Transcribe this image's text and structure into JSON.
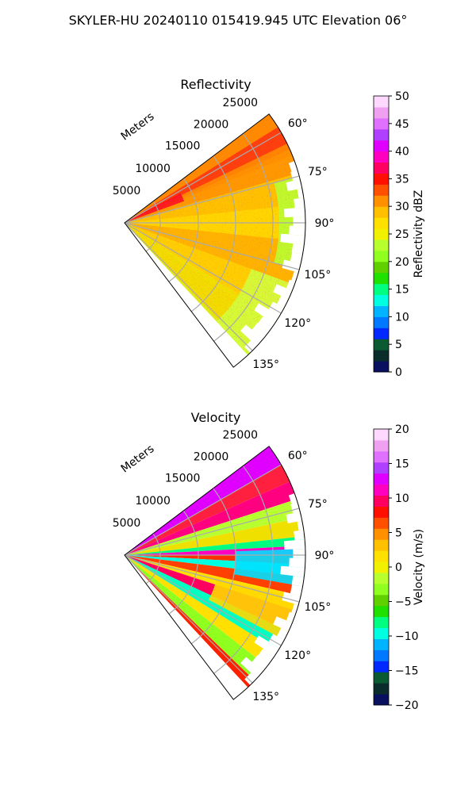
{
  "figure": {
    "title": "SKYLER-HU  20240110  015419.945 UTC Elevation 06°"
  },
  "chart_data": [
    {
      "type": "heatmap",
      "title": "Reflectivity",
      "range_axis_label": "Meters",
      "range_ticks": [
        "5000",
        "10000",
        "15000",
        "20000",
        "25000"
      ],
      "azimuth_ticks": [
        "60°",
        "75°",
        "90°",
        "105°",
        "120°",
        "135°"
      ],
      "azimuth_range": [
        53,
        143
      ],
      "colorbar": {
        "label": "Reflectivity dBZ",
        "ticks": [
          "0",
          "5",
          "10",
          "15",
          "20",
          "25",
          "30",
          "35",
          "40",
          "45",
          "50"
        ],
        "vmin": 0,
        "vmax": 50,
        "colors": [
          "#0a1060",
          "#0a2d2b",
          "#0a5a32",
          "#0028ff",
          "#0078ff",
          "#00b4ff",
          "#00ffe0",
          "#00ff80",
          "#20e000",
          "#60d000",
          "#90ff20",
          "#b8ff30",
          "#f0f000",
          "#ffe000",
          "#ffc000",
          "#ff9000",
          "#ff5000",
          "#ff1000",
          "#ff0060",
          "#ff00c0",
          "#e000ff",
          "#b040ff",
          "#e070ff",
          "#f0a0f0",
          "#ffd8ff"
        ]
      }
    },
    {
      "type": "heatmap",
      "title": "Velocity",
      "range_axis_label": "Meters",
      "range_ticks": [
        "5000",
        "10000",
        "15000",
        "20000",
        "25000"
      ],
      "azimuth_ticks": [
        "60°",
        "75°",
        "90°",
        "105°",
        "120°",
        "135°"
      ],
      "azimuth_range": [
        53,
        143
      ],
      "colorbar": {
        "label": "Velocity (m/s)",
        "ticks": [
          "−20",
          "−15",
          "−10",
          "−5",
          "0",
          "5",
          "10",
          "15",
          "20"
        ],
        "vmin": -20,
        "vmax": 20,
        "colors": [
          "#0a1060",
          "#0a2d2b",
          "#0a5a32",
          "#0028ff",
          "#0078ff",
          "#00b4ff",
          "#00ffe0",
          "#00ff80",
          "#20e000",
          "#60d000",
          "#90ff20",
          "#b8ff30",
          "#f0f000",
          "#ffe000",
          "#ffc000",
          "#ff9000",
          "#ff5000",
          "#ff1000",
          "#ff0060",
          "#ff00c0",
          "#e000ff",
          "#b040ff",
          "#e070ff",
          "#f0a0f0",
          "#ffd8ff"
        ]
      }
    }
  ]
}
